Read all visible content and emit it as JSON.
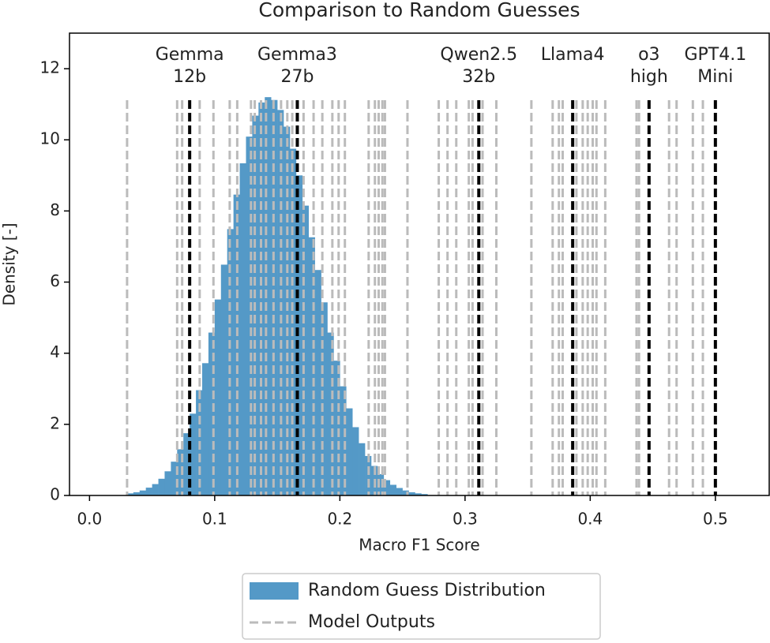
{
  "chart_data": {
    "type": "histogram",
    "title": "Comparison to Random Guesses",
    "xlabel": "Macro F1 Score",
    "ylabel": "Density [-]",
    "xlim": [
      -0.016,
      0.543
    ],
    "ylim": [
      0,
      13
    ],
    "xticks": [
      {
        "value": 0,
        "label": "0.0"
      },
      0.1,
      0.2,
      0.3,
      0.4,
      0.5
    ],
    "yticks": [
      0,
      2,
      4,
      6,
      8,
      10,
      12
    ],
    "legend": "bottom",
    "series": [
      {
        "name": "Random Guess Distribution",
        "color": "#5499c7",
        "bins": [
          0.03,
          0.035,
          0.04,
          0.045,
          0.05,
          0.055,
          0.06,
          0.065,
          0.07,
          0.075,
          0.08,
          0.085,
          0.09,
          0.095,
          0.1,
          0.105,
          0.11,
          0.115,
          0.12,
          0.125,
          0.13,
          0.135,
          0.14,
          0.145,
          0.15,
          0.155,
          0.16,
          0.165,
          0.17,
          0.175,
          0.18,
          0.185,
          0.19,
          0.195,
          0.2,
          0.205,
          0.21,
          0.215,
          0.22,
          0.225,
          0.23,
          0.235,
          0.24,
          0.245,
          0.25,
          0.255,
          0.26,
          0.265,
          0.27
        ],
        "values": [
          0.06,
          0.09,
          0.14,
          0.22,
          0.32,
          0.47,
          0.68,
          0.95,
          1.3,
          1.75,
          2.3,
          2.96,
          3.72,
          4.58,
          5.51,
          6.49,
          7.49,
          8.46,
          9.34,
          10.09,
          10.68,
          11.05,
          11.2,
          11.12,
          10.84,
          10.37,
          9.75,
          9.0,
          8.15,
          7.26,
          6.34,
          5.43,
          4.58,
          3.79,
          3.07,
          2.45,
          1.92,
          1.47,
          1.11,
          0.83,
          0.6,
          0.43,
          0.3,
          0.21,
          0.14,
          0.09,
          0.06,
          0.04
        ]
      }
    ],
    "model_outputs": {
      "name": "Model Outputs",
      "color": "#bbbbbb",
      "x": [
        0.03,
        0.07,
        0.074,
        0.088,
        0.099,
        0.112,
        0.118,
        0.129,
        0.132,
        0.137,
        0.141,
        0.147,
        0.153,
        0.158,
        0.162,
        0.171,
        0.179,
        0.186,
        0.194,
        0.199,
        0.204,
        0.223,
        0.228,
        0.231,
        0.234,
        0.236,
        0.254,
        0.279,
        0.286,
        0.293,
        0.303,
        0.306,
        0.314,
        0.325,
        0.353,
        0.37,
        0.375,
        0.378,
        0.389,
        0.394,
        0.398,
        0.402,
        0.405,
        0.412,
        0.437,
        0.439,
        0.463,
        0.469,
        0.482,
        0.49
      ]
    },
    "highlighted": {
      "color": "#000000",
      "x": [
        0.08,
        0.166,
        0.311,
        0.386,
        0.447,
        0.5
      ],
      "labels": [
        [
          "Gemma",
          "12b"
        ],
        [
          "Gemma3",
          "27b"
        ],
        [
          "Qwen2.5",
          "32b"
        ],
        [
          "Llama4"
        ],
        [
          "o3",
          "high"
        ],
        [
          "GPT4.1",
          "Mini"
        ]
      ]
    }
  }
}
